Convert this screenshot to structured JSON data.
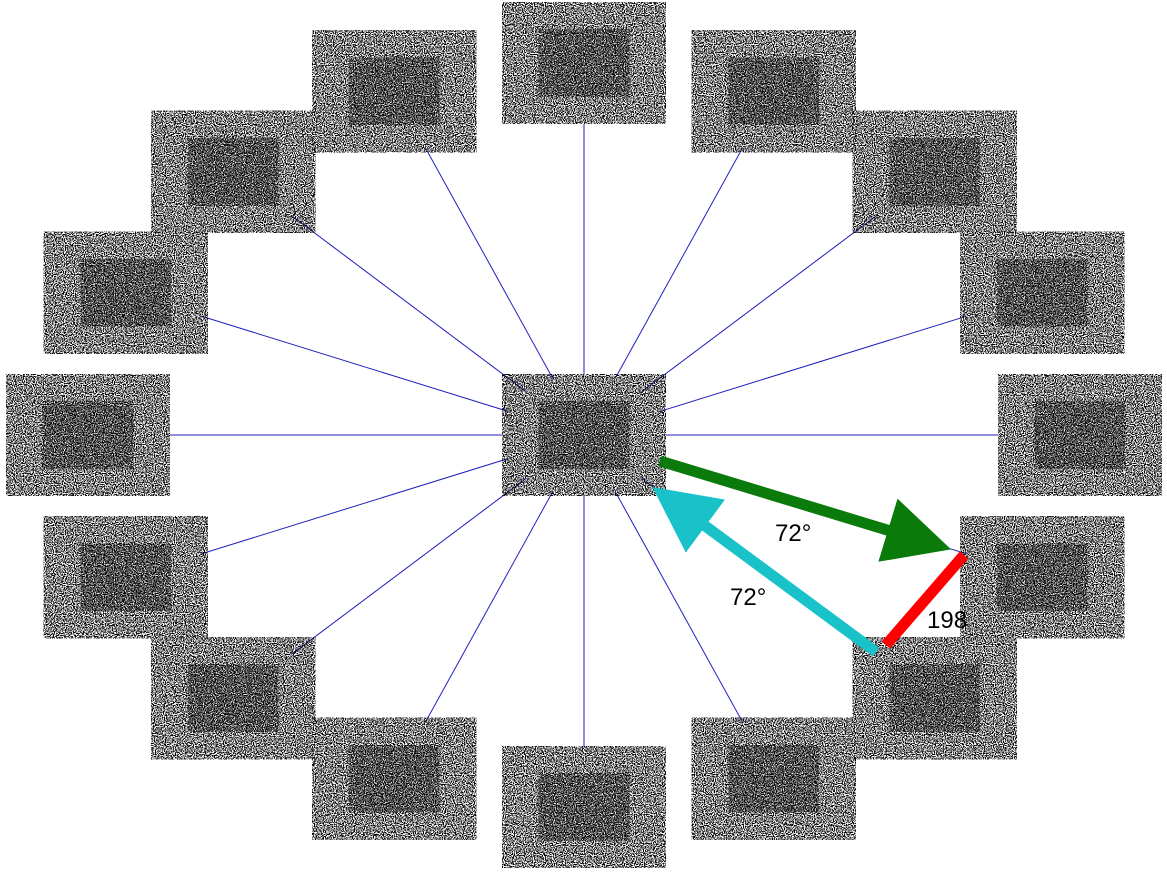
{
  "diagram": {
    "blob_count": 16,
    "colors": {
      "spoke": "#2020c0",
      "green_arrow": "#0a7a0a",
      "cyan_arrow": "#19c2c8",
      "red_bar": "#ff0000",
      "noise": "#000000",
      "background": "#ffffff"
    },
    "labels": {
      "green_angle": "72°",
      "cyan_angle": "72°",
      "red_length": "198"
    }
  }
}
